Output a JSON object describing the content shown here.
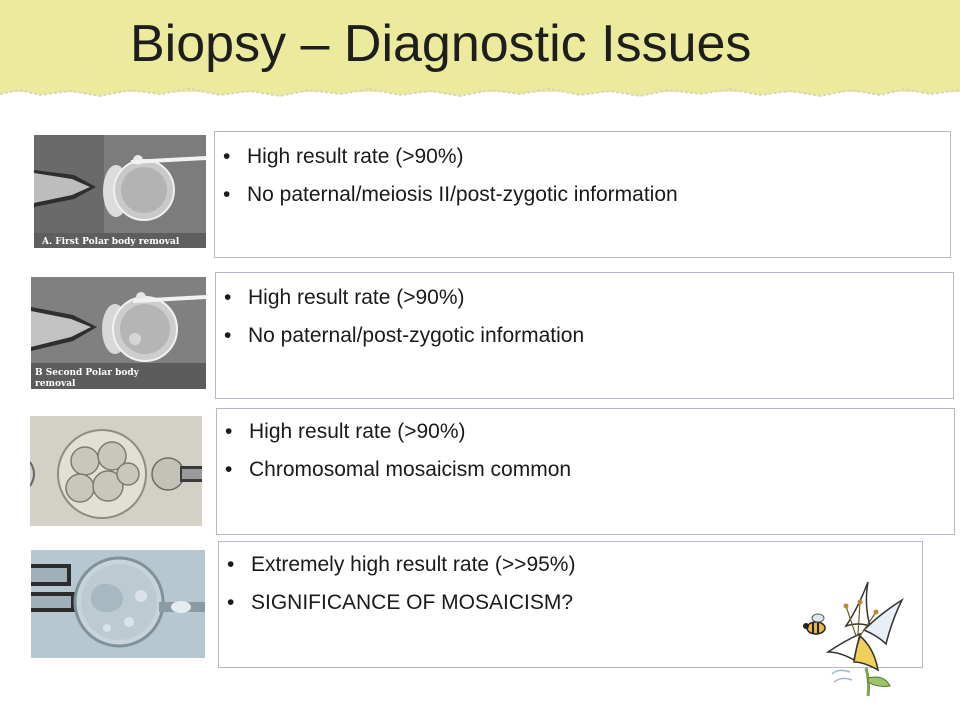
{
  "slide": {
    "title": "Biopsy – Diagnostic Issues",
    "accent_color": "#ecea9c",
    "border_color": "#b7b7c9"
  },
  "rows": [
    {
      "image": {
        "caption": "A. First Polar body removal",
        "icon": "polar-body-biopsy-micrograph"
      },
      "bullets": [
        "High result rate (>90%)",
        "No paternal/meiosis II/post-zygotic information"
      ]
    },
    {
      "image": {
        "caption_line1": "B Second Polar body",
        "caption_line2": "removal",
        "icon": "polar-body-biopsy-micrograph"
      },
      "bullets": [
        "High result rate (>90%)",
        "No paternal/post-zygotic information"
      ]
    },
    {
      "image": {
        "icon": "cleavage-stage-blastomere-biopsy-micrograph"
      },
      "bullets": [
        "High result rate (>90%)",
        "Chromosomal mosaicism common"
      ]
    },
    {
      "image": {
        "icon": "blastocyst-trophectoderm-biopsy-micrograph"
      },
      "bullets": [
        "Extremely high result rate (>>95%)",
        "SIGNIFICANCE OF MOSAICISM?"
      ]
    }
  ],
  "decoration": {
    "icon": "bee-and-lily-illustration"
  }
}
